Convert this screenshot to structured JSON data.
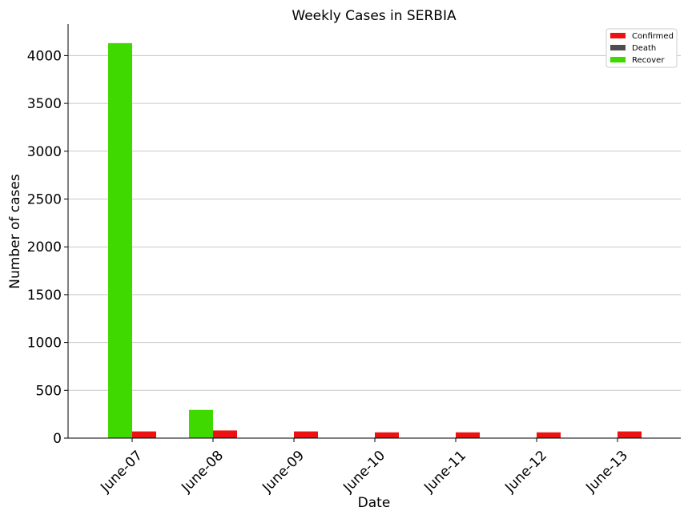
{
  "chart_data": {
    "type": "bar",
    "title": "Weekly Cases in SERBIA",
    "xlabel": "Date",
    "ylabel": "Number of cases",
    "categories": [
      "June-07",
      "June-08",
      "June-09",
      "June-10",
      "June-11",
      "June-12",
      "June-13"
    ],
    "series": [
      {
        "name": "Confirmed",
        "color": "#ee1111",
        "values": [
          70,
          80,
          70,
          60,
          60,
          60,
          70
        ]
      },
      {
        "name": "Death",
        "color": "#4d4d4d",
        "values": [
          0,
          0,
          0,
          0,
          0,
          0,
          0
        ]
      },
      {
        "name": "Recover",
        "color": "#3fd900",
        "values": [
          4130,
          295,
          0,
          0,
          0,
          0,
          0
        ]
      }
    ],
    "ylim": [
      0,
      4330
    ],
    "yticks": [
      0,
      500,
      1000,
      1500,
      2000,
      2500,
      3000,
      3500,
      4000
    ],
    "grid": "horizontal",
    "legend": "top-right"
  }
}
